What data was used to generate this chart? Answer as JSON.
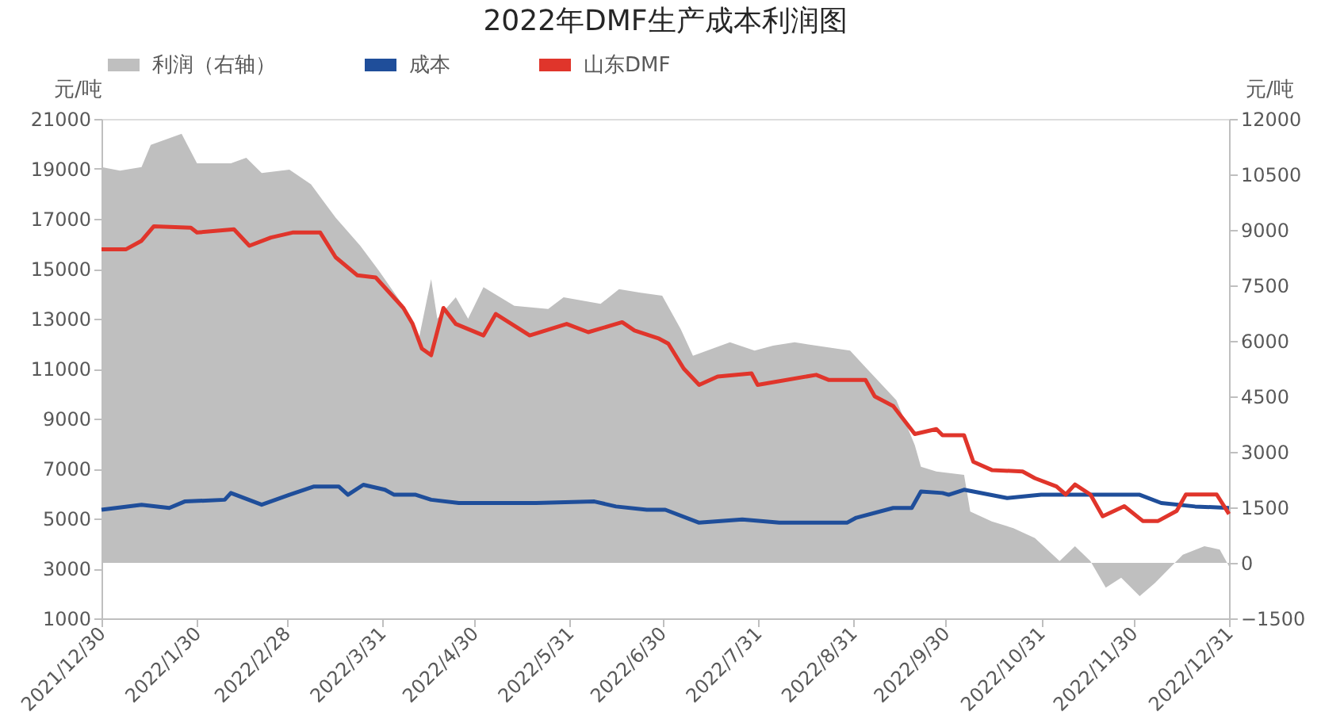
{
  "chart_data": {
    "type": "line",
    "title": "2022年DMF生产成本利润图",
    "ylabel": "元/吨",
    "y2label": "元/吨",
    "xlim": [
      "2021-12-30",
      "2022-12-31"
    ],
    "xticks": [
      {
        "value": "2021-12-30",
        "label": "2021/12/30"
      },
      {
        "value": "2022-01-30",
        "label": "2022/1/30"
      },
      {
        "value": "2022-02-28",
        "label": "2022/2/28"
      },
      {
        "value": "2022-03-31",
        "label": "2022/3/31"
      },
      {
        "value": "2022-04-30",
        "label": "2022/4/30"
      },
      {
        "value": "2022-05-31",
        "label": "2022/5/31"
      },
      {
        "value": "2022-06-30",
        "label": "2022/6/30"
      },
      {
        "value": "2022-07-31",
        "label": "2022/7/31"
      },
      {
        "value": "2022-08-31",
        "label": "2022/8/31"
      },
      {
        "value": "2022-09-30",
        "label": "2022/9/30"
      },
      {
        "value": "2022-10-31",
        "label": "2022/10/31"
      },
      {
        "value": "2022-11-30",
        "label": "2022/11/30"
      },
      {
        "value": "2022-12-31",
        "label": "2022/12/31"
      }
    ],
    "ylim": [
      1000,
      21000
    ],
    "yticks": [
      1000,
      3000,
      5000,
      7000,
      9000,
      11000,
      13000,
      15000,
      17000,
      19000,
      21000
    ],
    "y2lim": [
      -1500,
      12000
    ],
    "y2ticks": [
      -1500,
      0,
      1500,
      3000,
      4500,
      6000,
      7500,
      9000,
      10500,
      12000
    ],
    "grid": false,
    "legend": "top",
    "line_style": "solid",
    "series": [
      {
        "name": "利润（右轴）",
        "type": "area",
        "axis": "y2",
        "color": "#bfbfbf",
        "x": [
          "2021-12-30",
          "2022-01-05",
          "2022-01-12",
          "2022-01-15",
          "2022-01-25",
          "2022-01-30",
          "2022-02-10",
          "2022-02-15",
          "2022-02-20",
          "2022-03-01",
          "2022-03-08",
          "2022-03-16",
          "2022-03-24",
          "2022-03-30",
          "2022-04-07",
          "2022-04-12",
          "2022-04-16",
          "2022-04-18",
          "2022-04-24",
          "2022-04-28",
          "2022-05-03",
          "2022-05-13",
          "2022-05-24",
          "2022-05-29",
          "2022-06-10",
          "2022-06-16",
          "2022-06-23",
          "2022-06-30",
          "2022-07-06",
          "2022-07-10",
          "2022-07-22",
          "2022-07-30",
          "2022-08-05",
          "2022-08-12",
          "2022-08-30",
          "2022-09-04",
          "2022-09-14",
          "2022-09-20",
          "2022-09-22",
          "2022-09-27",
          "2022-10-06",
          "2022-10-08",
          "2022-10-15",
          "2022-10-22",
          "2022-10-29",
          "2022-11-06",
          "2022-11-11",
          "2022-11-16",
          "2022-11-21",
          "2022-11-26",
          "2022-12-02",
          "2022-12-07",
          "2022-12-16",
          "2022-12-23",
          "2022-12-28",
          "2022-12-31"
        ],
        "values": [
          10700,
          10600,
          10700,
          11300,
          11600,
          10800,
          10800,
          10950,
          10540,
          10630,
          10230,
          9330,
          8570,
          7900,
          6950,
          6050,
          7670,
          6600,
          7180,
          6600,
          7450,
          6950,
          6860,
          7180,
          7000,
          7400,
          7300,
          7220,
          6320,
          5600,
          5960,
          5740,
          5870,
          5960,
          5740,
          5290,
          4400,
          3180,
          2600,
          2470,
          2380,
          1390,
          1120,
          940,
          670,
          50,
          450,
          50,
          -670,
          -400,
          -900,
          -540,
          220,
          450,
          360,
          -90
        ]
      },
      {
        "name": "成本",
        "color": "#1f4e9a",
        "x": [
          "2021-12-30",
          "2022-01-12",
          "2022-01-21",
          "2022-01-26",
          "2022-02-08",
          "2022-02-10",
          "2022-02-20",
          "2022-03-01",
          "2022-03-09",
          "2022-03-17",
          "2022-03-20",
          "2022-03-25",
          "2022-04-01",
          "2022-04-04",
          "2022-04-11",
          "2022-04-16",
          "2022-04-25",
          "2022-05-05",
          "2022-05-20",
          "2022-06-08",
          "2022-06-15",
          "2022-06-25",
          "2022-07-01",
          "2022-07-12",
          "2022-07-26",
          "2022-08-07",
          "2022-08-29",
          "2022-09-01",
          "2022-09-13",
          "2022-09-19",
          "2022-09-22",
          "2022-09-29",
          "2022-10-01",
          "2022-10-06",
          "2022-10-20",
          "2022-10-31",
          "2022-11-21",
          "2022-12-02",
          "2022-12-09",
          "2022-12-20",
          "2022-12-31"
        ],
        "values": [
          5350,
          5550,
          5420,
          5680,
          5750,
          6020,
          5550,
          5950,
          6280,
          6280,
          5950,
          6350,
          6150,
          5950,
          5950,
          5750,
          5620,
          5620,
          5620,
          5680,
          5480,
          5350,
          5350,
          4830,
          4960,
          4830,
          4830,
          5030,
          5420,
          5420,
          6080,
          6020,
          5950,
          6150,
          5820,
          5950,
          5950,
          5950,
          5620,
          5480,
          5420
        ]
      },
      {
        "name": "山东DMF",
        "color": "#e0352b",
        "x": [
          "2021-12-30",
          "2022-01-07",
          "2022-01-12",
          "2022-01-16",
          "2022-01-28",
          "2022-01-30",
          "2022-02-11",
          "2022-02-16",
          "2022-02-23",
          "2022-03-02",
          "2022-03-11",
          "2022-03-16",
          "2022-03-23",
          "2022-03-29",
          "2022-04-07",
          "2022-04-10",
          "2022-04-13",
          "2022-04-16",
          "2022-04-20",
          "2022-04-24",
          "2022-05-03",
          "2022-05-07",
          "2022-05-18",
          "2022-05-30",
          "2022-06-06",
          "2022-06-17",
          "2022-06-21",
          "2022-06-29",
          "2022-07-02",
          "2022-07-07",
          "2022-07-12",
          "2022-07-18",
          "2022-07-29",
          "2022-07-31",
          "2022-08-19",
          "2022-08-23",
          "2022-09-04",
          "2022-09-07",
          "2022-09-13",
          "2022-09-20",
          "2022-09-27",
          "2022-09-29",
          "2022-10-06",
          "2022-10-09",
          "2022-10-15",
          "2022-10-25",
          "2022-10-29",
          "2022-11-05",
          "2022-11-08",
          "2022-11-11",
          "2022-11-16",
          "2022-11-20",
          "2022-11-27",
          "2022-12-03",
          "2022-12-08",
          "2022-12-14",
          "2022-12-17",
          "2022-12-27",
          "2022-12-31"
        ],
        "values": [
          15780,
          15780,
          16120,
          16700,
          16640,
          16450,
          16580,
          15920,
          16250,
          16450,
          16450,
          15460,
          14740,
          14650,
          13430,
          12790,
          11800,
          11540,
          13430,
          12790,
          12330,
          13190,
          12330,
          12790,
          12460,
          12860,
          12530,
          12200,
          12000,
          11000,
          10350,
          10680,
          10810,
          10350,
          10750,
          10550,
          10550,
          9890,
          9500,
          8380,
          8580,
          8330,
          8330,
          7270,
          6940,
          6880,
          6610,
          6280,
          5960,
          6360,
          5960,
          5090,
          5490,
          4900,
          4900,
          5300,
          5960,
          5960,
          5180
        ]
      }
    ]
  }
}
